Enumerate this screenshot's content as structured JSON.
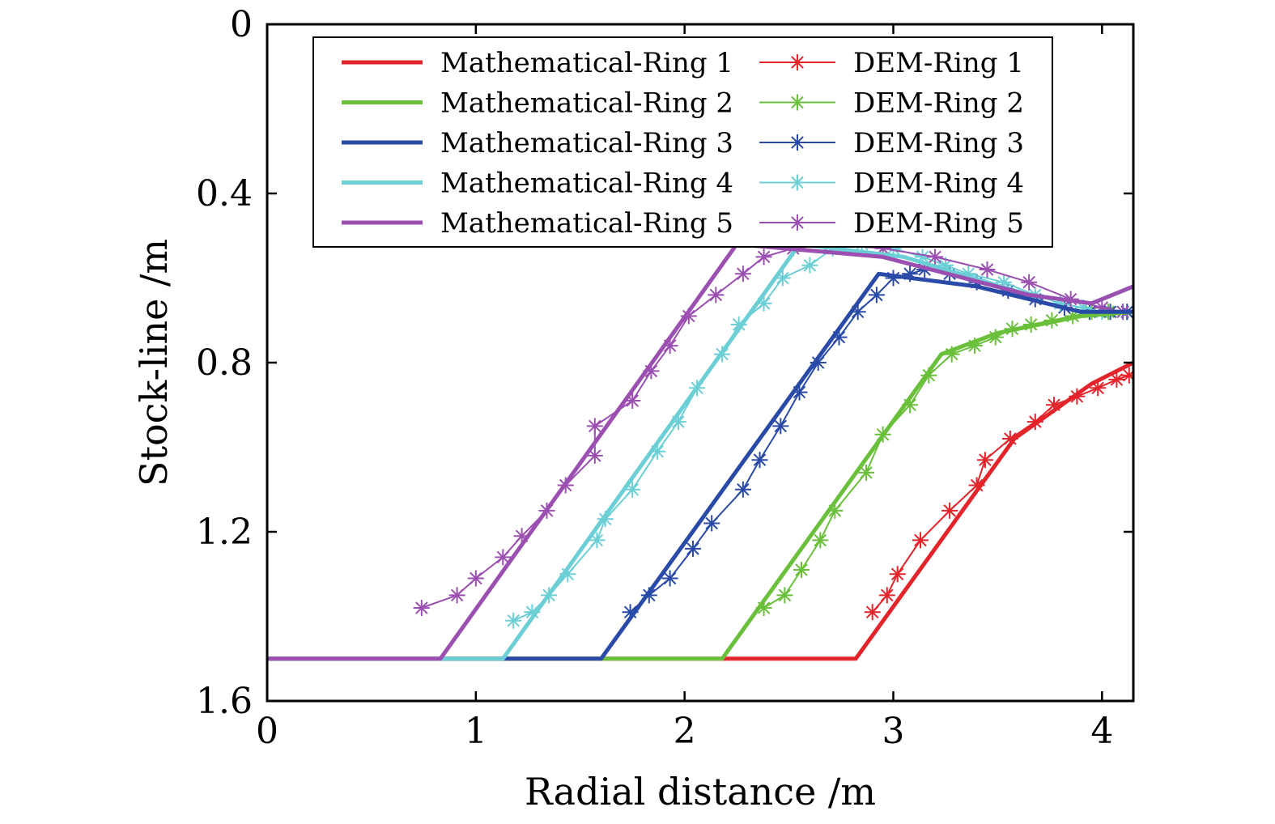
{
  "chart_data": {
    "type": "line",
    "xlabel": "Radial distance /m",
    "ylabel": "Stock-line /m",
    "xlim": [
      0,
      4.15
    ],
    "ylim": [
      0,
      1.6
    ],
    "y_inverted": true,
    "xticks": [
      0,
      1,
      2,
      3,
      4
    ],
    "xtick_labels": [
      "0",
      "1",
      "2",
      "3",
      "4"
    ],
    "yticks": [
      0,
      0.4,
      0.8,
      1.2,
      1.6
    ],
    "ytick_labels": [
      "0",
      "0.4",
      "0.8",
      "1.2",
      "1.6"
    ],
    "grid": false,
    "legend_position": "top",
    "series": [
      {
        "name": "Mathematical-Ring 1",
        "color": "#e3242b",
        "style": "thick-line",
        "x": [
          0,
          2.82,
          3.58,
          3.95,
          4.15
        ],
        "y": [
          1.5,
          1.5,
          0.98,
          0.85,
          0.8
        ]
      },
      {
        "name": "Mathematical-Ring 2",
        "color": "#6abf3b",
        "style": "thick-line",
        "x": [
          0,
          2.18,
          3.23,
          3.5,
          3.9,
          4.15
        ],
        "y": [
          1.5,
          1.5,
          0.78,
          0.73,
          0.69,
          0.68
        ]
      },
      {
        "name": "Mathematical-Ring 3",
        "color": "#2a4aa8",
        "style": "thick-line",
        "x": [
          0,
          1.6,
          2.93,
          3.4,
          3.9,
          4.15
        ],
        "y": [
          1.5,
          1.5,
          0.59,
          0.62,
          0.68,
          0.68
        ]
      },
      {
        "name": "Mathematical-Ring 4",
        "color": "#6ccfd6",
        "style": "thick-line",
        "x": [
          0,
          1.13,
          2.55,
          3.05,
          3.65,
          3.95,
          4.15
        ],
        "y": [
          1.5,
          1.5,
          0.52,
          0.55,
          0.64,
          0.66,
          0.62
        ]
      },
      {
        "name": "Mathematical-Ring 5",
        "color": "#9b4fb0",
        "style": "thick-line",
        "x": [
          0,
          0.83,
          2.25,
          2.95,
          3.65,
          3.95,
          4.15
        ],
        "y": [
          1.5,
          1.5,
          0.52,
          0.55,
          0.64,
          0.66,
          0.62
        ]
      },
      {
        "name": "DEM-Ring 1",
        "color": "#e3242b",
        "style": "thin-line-star",
        "x": [
          2.9,
          2.97,
          3.02,
          3.13,
          3.27,
          3.4,
          3.44,
          3.56,
          3.68,
          3.77,
          3.88,
          3.98,
          4.07,
          4.13
        ],
        "y": [
          1.39,
          1.35,
          1.3,
          1.22,
          1.15,
          1.09,
          1.03,
          0.98,
          0.94,
          0.9,
          0.88,
          0.86,
          0.84,
          0.83
        ]
      },
      {
        "name": "DEM-Ring 2",
        "color": "#6abf3b",
        "style": "thin-line-star",
        "x": [
          2.38,
          2.48,
          2.56,
          2.65,
          2.72,
          2.87,
          2.95,
          3.08,
          3.17,
          3.28,
          3.39,
          3.49,
          3.57,
          3.66,
          3.76,
          3.86,
          3.95,
          4.03,
          4.12
        ],
        "y": [
          1.38,
          1.35,
          1.29,
          1.22,
          1.15,
          1.06,
          0.97,
          0.9,
          0.83,
          0.78,
          0.76,
          0.74,
          0.72,
          0.71,
          0.7,
          0.69,
          0.68,
          0.68,
          0.68
        ]
      },
      {
        "name": "DEM-Ring 3",
        "color": "#2a4aa8",
        "style": "thin-line-star",
        "x": [
          1.74,
          1.83,
          1.93,
          2.04,
          2.13,
          2.28,
          2.36,
          2.46,
          2.55,
          2.64,
          2.74,
          2.83,
          2.92,
          3.0,
          3.08,
          3.15,
          3.27,
          3.4,
          3.55,
          3.68,
          3.82,
          3.94,
          4.04,
          4.12
        ],
        "y": [
          1.39,
          1.35,
          1.31,
          1.24,
          1.18,
          1.1,
          1.03,
          0.95,
          0.87,
          0.8,
          0.74,
          0.68,
          0.64,
          0.6,
          0.59,
          0.58,
          0.59,
          0.61,
          0.63,
          0.65,
          0.67,
          0.68,
          0.68,
          0.68
        ]
      },
      {
        "name": "DEM-Ring 4",
        "color": "#6ccfd6",
        "style": "thin-line-star",
        "x": [
          1.18,
          1.27,
          1.35,
          1.44,
          1.58,
          1.62,
          1.75,
          1.87,
          1.97,
          2.06,
          2.18,
          2.26,
          2.38,
          2.47,
          2.6,
          2.71,
          2.85,
          3.0,
          3.14,
          3.25,
          3.36,
          3.53,
          3.68,
          3.8,
          3.91,
          4.0,
          4.1
        ],
        "y": [
          1.41,
          1.39,
          1.35,
          1.3,
          1.22,
          1.17,
          1.1,
          1.01,
          0.94,
          0.86,
          0.78,
          0.71,
          0.66,
          0.6,
          0.57,
          0.53,
          0.52,
          0.53,
          0.55,
          0.57,
          0.59,
          0.61,
          0.64,
          0.66,
          0.67,
          0.68,
          0.68
        ]
      },
      {
        "name": "DEM-Ring 5",
        "color": "#9b4fb0",
        "style": "thin-line-star",
        "x": [
          0.74,
          0.91,
          1.0,
          1.13,
          1.22,
          1.34,
          1.43,
          1.57,
          1.57,
          1.75,
          1.84,
          1.93,
          2.02,
          2.15,
          2.28,
          2.38,
          2.52,
          2.7,
          2.95,
          3.2,
          3.45,
          3.65,
          3.85,
          4.0,
          4.1
        ],
        "y": [
          1.38,
          1.35,
          1.31,
          1.26,
          1.21,
          1.15,
          1.09,
          1.02,
          0.95,
          0.89,
          0.82,
          0.76,
          0.69,
          0.64,
          0.59,
          0.55,
          0.53,
          0.52,
          0.53,
          0.55,
          0.58,
          0.61,
          0.65,
          0.67,
          0.68
        ]
      }
    ]
  }
}
